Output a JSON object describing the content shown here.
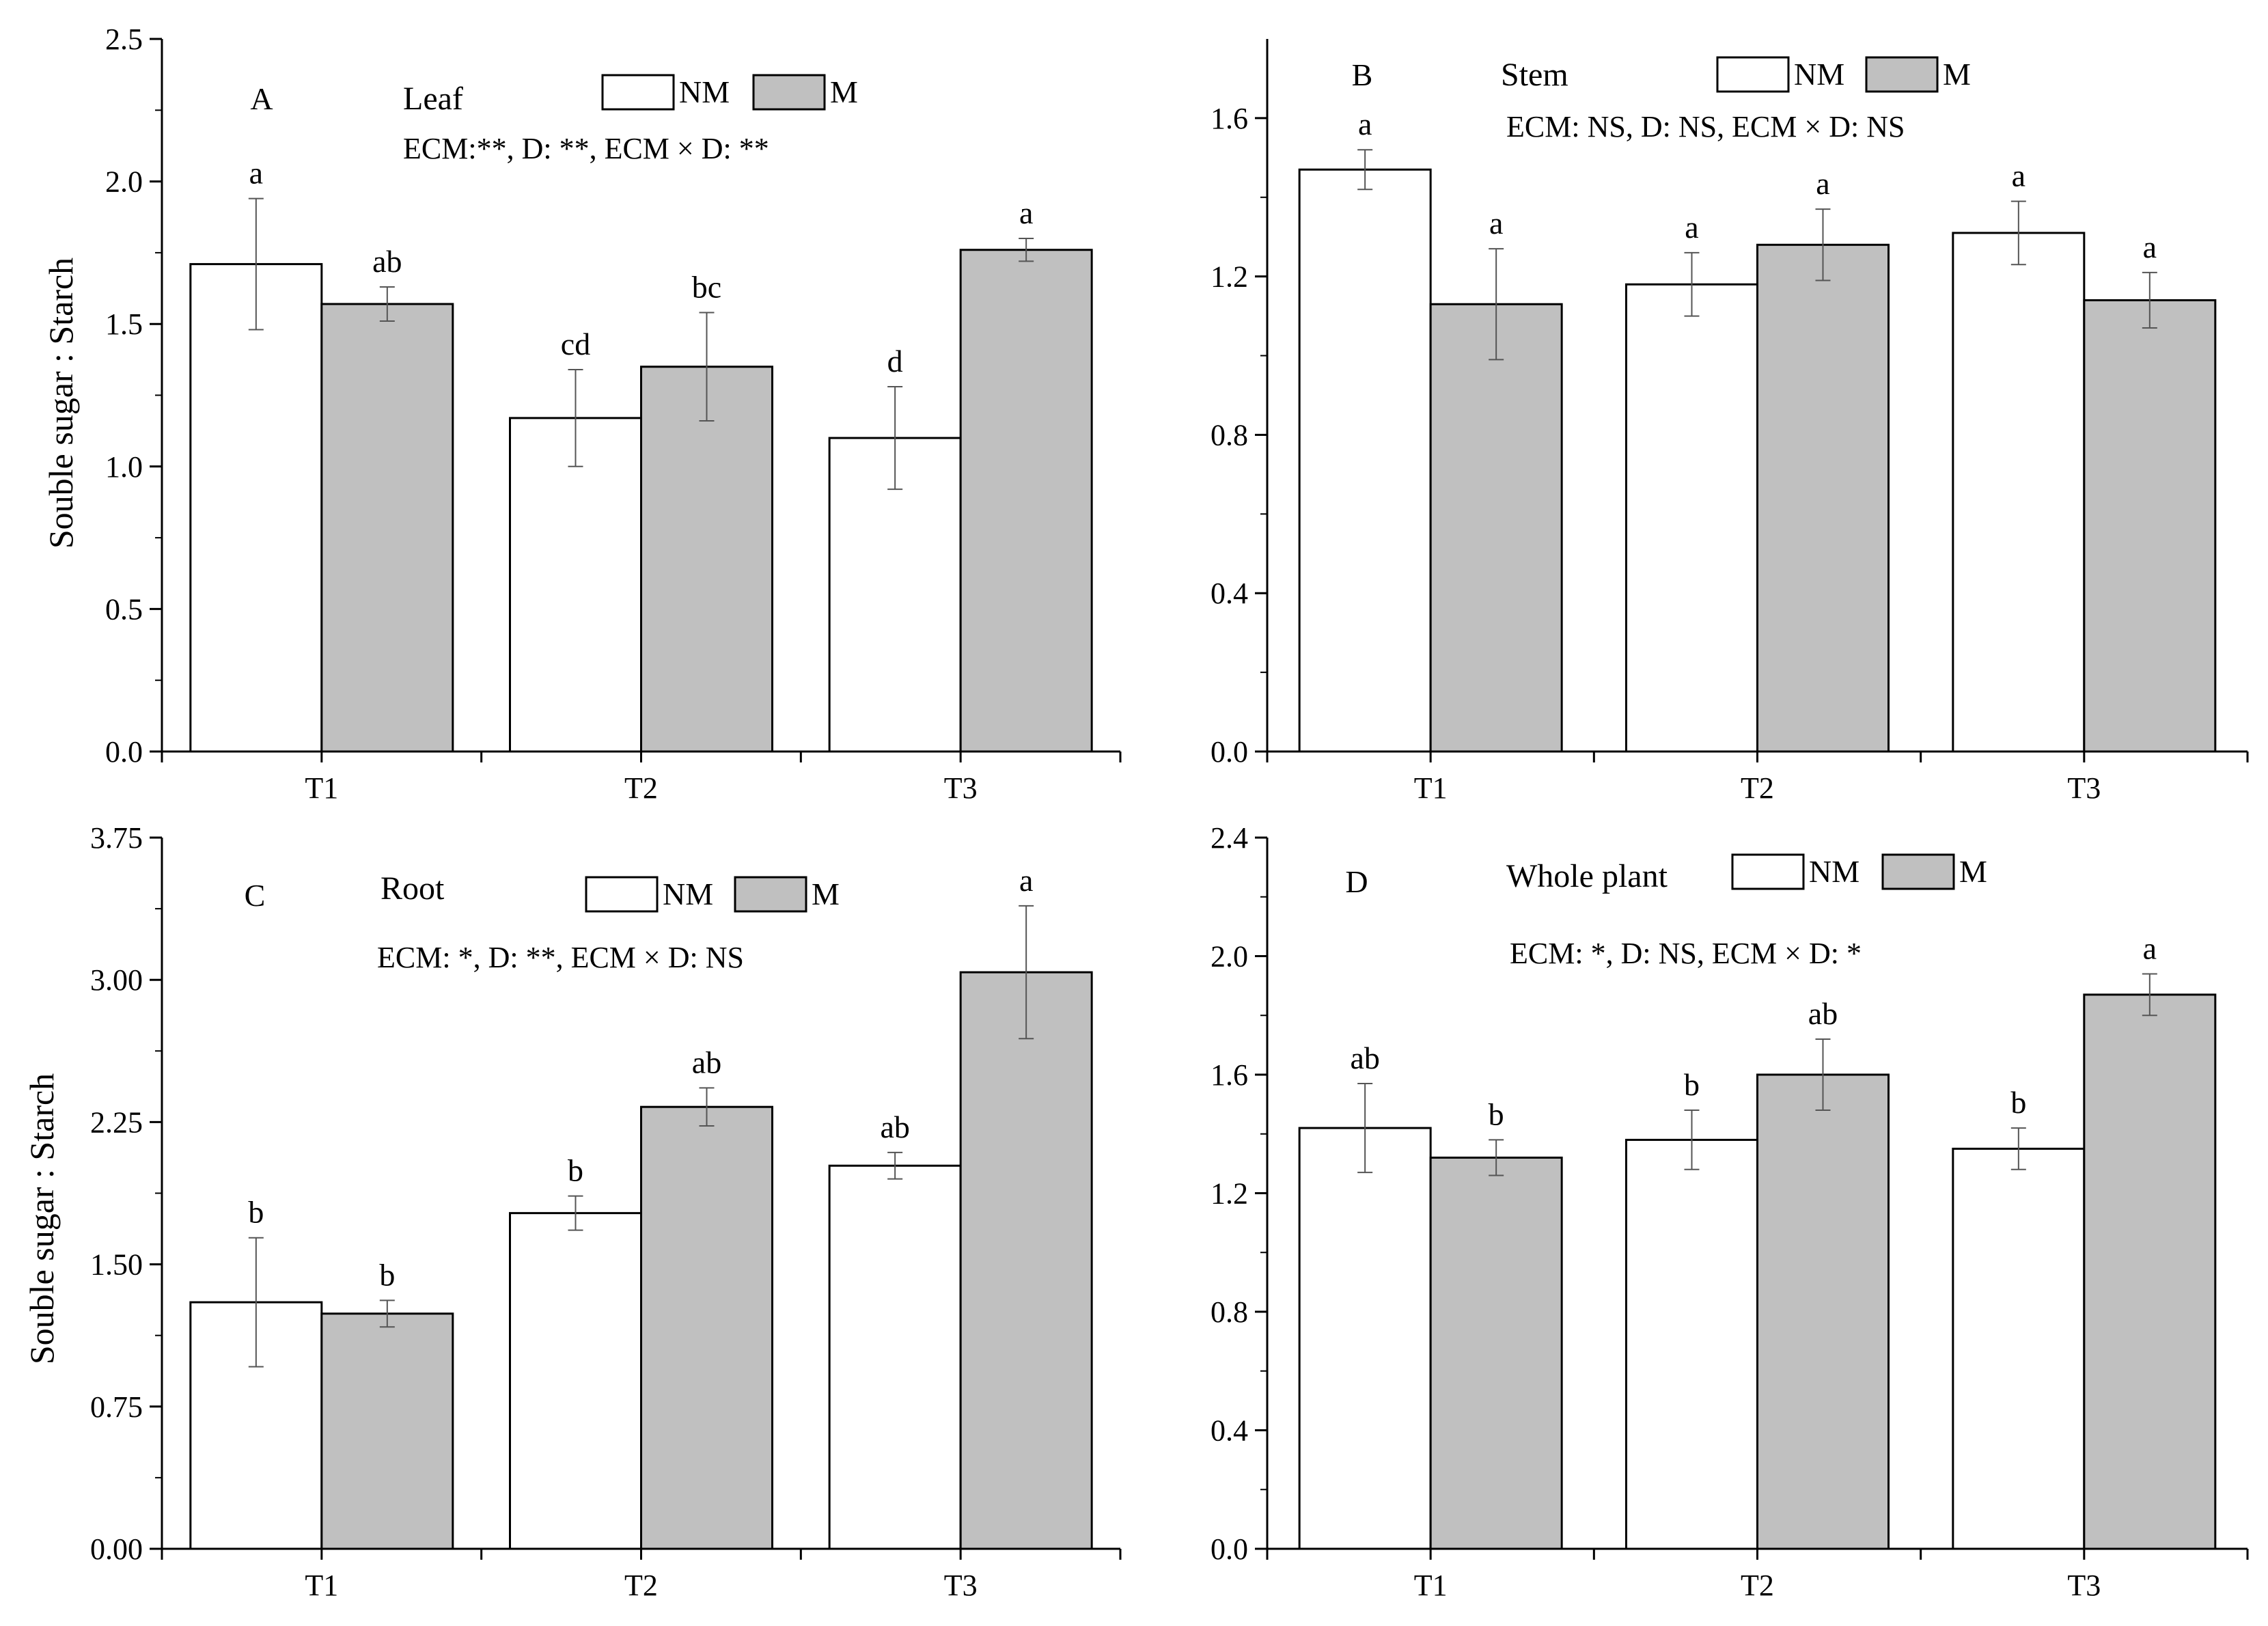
{
  "colors": {
    "nm": "#ffffff",
    "m": "#c0c0c0",
    "stroke": "#000000"
  },
  "legend": {
    "nm_label": "NM",
    "m_label": "M"
  },
  "chart_data": [
    {
      "type": "bar",
      "panel": "A",
      "title": "Leaf",
      "stats": "ECM:**, D: **, ECM × D: **",
      "ylabel": "Souble sugar : Starch",
      "xlabel": "",
      "categories": [
        "T1",
        "T2",
        "T3"
      ],
      "ylim": [
        0,
        2.5
      ],
      "yticks": [
        "0.0",
        "0.5",
        "1.0",
        "1.5",
        "2.0",
        "2.5"
      ],
      "ytick_values": [
        0,
        0.5,
        1.0,
        1.5,
        2.0,
        2.5
      ],
      "series": [
        {
          "name": "NM",
          "values": [
            1.71,
            1.17,
            1.1
          ],
          "errors": [
            0.23,
            0.17,
            0.18
          ],
          "letters": [
            "a",
            "cd",
            "d"
          ]
        },
        {
          "name": "M",
          "values": [
            1.57,
            1.35,
            1.76
          ],
          "errors": [
            0.06,
            0.19,
            0.04
          ],
          "letters": [
            "ab",
            "bc",
            "a"
          ]
        }
      ]
    },
    {
      "type": "bar",
      "panel": "B",
      "title": "Stem",
      "stats": "ECM: NS, D: NS, ECM × D: NS",
      "ylabel": "",
      "xlabel": "",
      "categories": [
        "T1",
        "T2",
        "T3"
      ],
      "ylim": [
        0,
        1.8
      ],
      "yticks": [
        "0.0",
        "0.4",
        "0.8",
        "1.2",
        "1.6"
      ],
      "ytick_values": [
        0,
        0.4,
        0.8,
        1.2,
        1.6
      ],
      "series": [
        {
          "name": "NM",
          "values": [
            1.47,
            1.18,
            1.31
          ],
          "errors": [
            0.05,
            0.08,
            0.08
          ],
          "letters": [
            "a",
            "a",
            "a"
          ]
        },
        {
          "name": "M",
          "values": [
            1.13,
            1.28,
            1.14
          ],
          "errors": [
            0.14,
            0.09,
            0.07
          ],
          "letters": [
            "a",
            "a",
            "a"
          ]
        }
      ]
    },
    {
      "type": "bar",
      "panel": "C",
      "title": "Root",
      "stats": "ECM: *, D: **, ECM × D: NS",
      "ylabel": "Souble sugar : Starch",
      "xlabel": "",
      "categories": [
        "T1",
        "T2",
        "T3"
      ],
      "ylim": [
        0,
        3.75
      ],
      "yticks": [
        "0.00",
        "0.75",
        "1.50",
        "2.25",
        "3.00",
        "3.75"
      ],
      "ytick_values": [
        0,
        0.75,
        1.5,
        2.25,
        3.0,
        3.75
      ],
      "series": [
        {
          "name": "NM",
          "values": [
            1.3,
            1.77,
            2.02
          ],
          "errors": [
            0.34,
            0.09,
            0.07
          ],
          "letters": [
            "b",
            "b",
            "ab"
          ]
        },
        {
          "name": "M",
          "values": [
            1.24,
            2.33,
            3.04
          ],
          "errors": [
            0.07,
            0.1,
            0.35
          ],
          "letters": [
            "b",
            "ab",
            "a"
          ]
        }
      ]
    },
    {
      "type": "bar",
      "panel": "D",
      "title": "Whole plant",
      "stats": "ECM: *, D: NS, ECM × D: *",
      "ylabel": "",
      "xlabel": "",
      "categories": [
        "T1",
        "T2",
        "T3"
      ],
      "ylim": [
        0,
        2.4
      ],
      "yticks": [
        "0.0",
        "0.4",
        "0.8",
        "1.2",
        "1.6",
        "2.0",
        "2.4"
      ],
      "ytick_values": [
        0,
        0.4,
        0.8,
        1.2,
        1.6,
        2.0,
        2.4
      ],
      "series": [
        {
          "name": "NM",
          "values": [
            1.42,
            1.38,
            1.35
          ],
          "errors": [
            0.15,
            0.1,
            0.07
          ],
          "letters": [
            "ab",
            "b",
            "b"
          ]
        },
        {
          "name": "M",
          "values": [
            1.32,
            1.6,
            1.87
          ],
          "errors": [
            0.06,
            0.12,
            0.07
          ],
          "letters": [
            "b",
            "ab",
            "a"
          ]
        }
      ]
    }
  ]
}
